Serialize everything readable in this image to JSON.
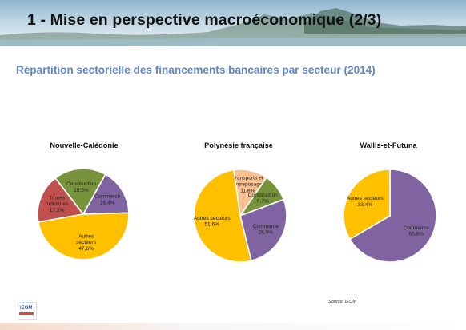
{
  "header": {
    "title": "1 - Mise en perspective macroéconomique (2/3)"
  },
  "subtitle": "Répartition sectorielle des financements bancaires par secteur (2014)",
  "source": "Source: IEOM",
  "logo_text": "IEOM",
  "chart_data": [
    {
      "type": "pie",
      "title": "Nouvelle-Calédonie",
      "slices": [
        {
          "label": [
            "Toutes",
            "Industries"
          ],
          "value_label": "17,3%",
          "value": 17.3,
          "color": "#c0504d"
        },
        {
          "label": [
            "Construction"
          ],
          "value_label": "18,5%",
          "value": 18.5,
          "color": "#77933c"
        },
        {
          "label": [
            "Commerce"
          ],
          "value_label": "16,4%",
          "value": 16.4,
          "color": "#8064a2"
        },
        {
          "label": [
            "Autres",
            "secteurs"
          ],
          "value_label": "47,6%",
          "value": 47.6,
          "color": "#ffc000"
        }
      ]
    },
    {
      "type": "pie",
      "title": "Polynésie française",
      "slices": [
        {
          "label": [
            "Transports et",
            "entreposage"
          ],
          "value_label": "11,8%",
          "value": 11.8,
          "color": "#fac090"
        },
        {
          "label": [
            "Construction"
          ],
          "value_label": "9,7%",
          "value": 9.7,
          "color": "#77933c"
        },
        {
          "label": [
            "Commerce"
          ],
          "value_label": "26,9%",
          "value": 26.9,
          "color": "#8064a2"
        },
        {
          "label": [
            "Autres secteurs"
          ],
          "value_label": "51,6%",
          "value": 51.6,
          "color": "#ffc000"
        }
      ]
    },
    {
      "type": "pie",
      "title": "Wallis-et-Futuna",
      "slices": [
        {
          "label": [
            "Commerce"
          ],
          "value_label": "66,6%",
          "value": 66.6,
          "color": "#8064a2"
        },
        {
          "label": [
            "Autres secteurs"
          ],
          "value_label": "33,4%",
          "value": 33.4,
          "color": "#ffc000"
        }
      ]
    }
  ]
}
